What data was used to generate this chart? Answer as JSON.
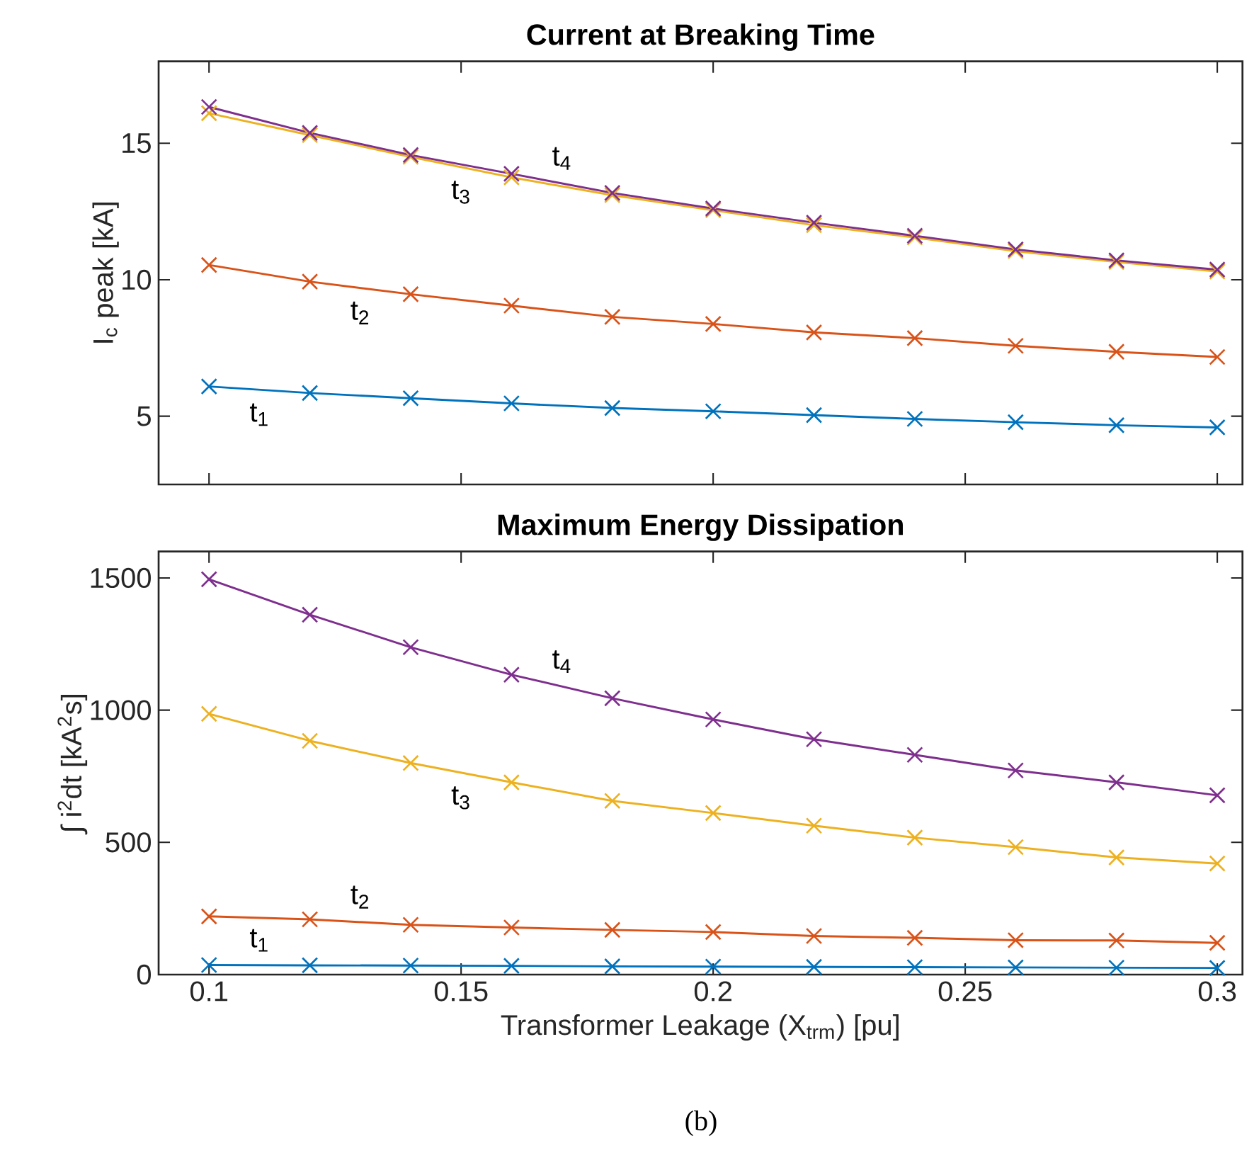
{
  "chart_data": [
    {
      "type": "line",
      "title": "Current at Breaking Time",
      "ylabel": "I$_{c}$ peak [kA]",
      "x": [
        0.1,
        0.12,
        0.14,
        0.16,
        0.18,
        0.2,
        0.22,
        0.24,
        0.26,
        0.28,
        0.3
      ],
      "xlim": [
        0.09,
        0.305
      ],
      "xticks": [
        0.1,
        0.15,
        0.2,
        0.25,
        0.3
      ],
      "ylim": [
        2.5,
        18
      ],
      "yticks": [
        5,
        10,
        15
      ],
      "tick_labels": "y",
      "marker": "cross",
      "line_style": "solid",
      "grid": false,
      "series": [
        {
          "name": "t$_{1}$",
          "color": "#0072bd",
          "values": [
            6.09,
            5.85,
            5.66,
            5.47,
            5.3,
            5.18,
            5.04,
            4.9,
            4.78,
            4.67,
            4.59
          ]
        },
        {
          "name": "t$_{2}$",
          "color": "#d95319",
          "values": [
            10.54,
            9.93,
            9.47,
            9.05,
            8.64,
            8.38,
            8.07,
            7.86,
            7.58,
            7.36,
            7.17
          ]
        },
        {
          "name": "t$_{3}$",
          "color": "#edb120",
          "values": [
            16.1,
            15.3,
            14.5,
            13.75,
            13.1,
            12.55,
            12.0,
            11.55,
            11.05,
            10.65,
            10.3
          ]
        },
        {
          "name": "t$_{4}$",
          "color": "#7e2f8e",
          "values": [
            16.33,
            15.38,
            14.57,
            13.88,
            13.18,
            12.61,
            12.09,
            11.61,
            11.11,
            10.71,
            10.37
          ]
        }
      ]
    },
    {
      "type": "line",
      "title": "Maximum Energy Dissipation",
      "ylabel": "∫ i$^{2}$dt [kA$^{2}$s]",
      "xlabel": "Transformer Leakage (X$_{trm}$) [pu]",
      "x": [
        0.1,
        0.12,
        0.14,
        0.16,
        0.18,
        0.2,
        0.22,
        0.24,
        0.26,
        0.28,
        0.3
      ],
      "xlim": [
        0.09,
        0.305
      ],
      "xticks": [
        0.1,
        0.15,
        0.2,
        0.25,
        0.3
      ],
      "ylim": [
        0,
        1600
      ],
      "yticks": [
        0,
        500,
        1000,
        1500
      ],
      "marker": "cross",
      "line_style": "solid",
      "grid": false,
      "annotations": [
        "(b)"
      ],
      "series": [
        {
          "name": "t$_{1}$",
          "color": "#0072bd",
          "values": [
            36,
            35,
            34,
            33,
            31,
            30,
            29,
            28,
            27,
            26,
            25
          ]
        },
        {
          "name": "t$_{2}$",
          "color": "#d95319",
          "values": [
            220,
            209,
            188,
            178,
            169,
            161,
            146,
            139,
            130,
            129,
            120
          ]
        },
        {
          "name": "t$_{3}$",
          "color": "#edb120",
          "values": [
            986,
            884,
            800,
            727,
            657,
            611,
            563,
            518,
            482,
            443,
            420
          ]
        },
        {
          "name": "t$_{4}$",
          "color": "#7e2f8e",
          "values": [
            1495,
            1361,
            1238,
            1134,
            1045,
            965,
            890,
            831,
            772,
            727,
            678
          ]
        }
      ]
    }
  ]
}
